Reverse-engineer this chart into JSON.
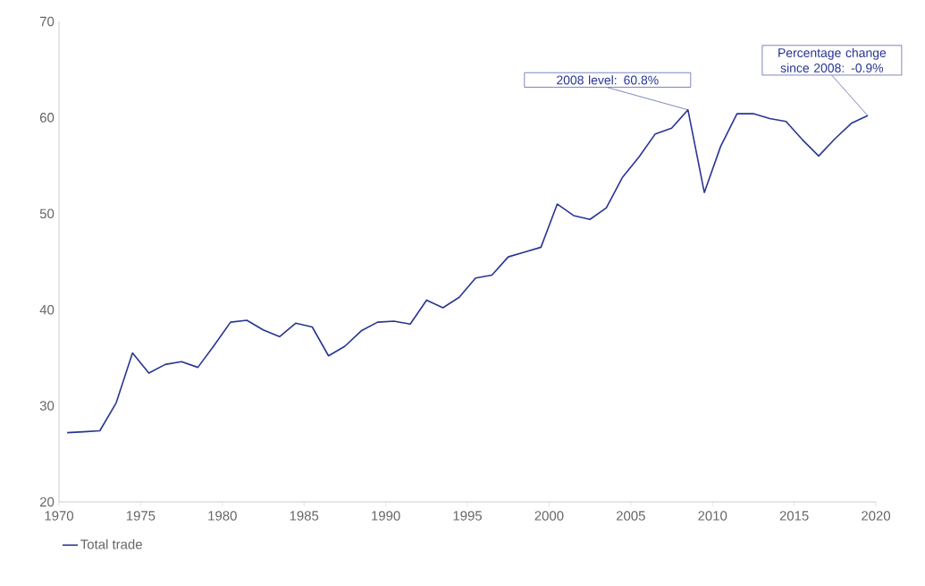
{
  "chart_data": {
    "type": "line",
    "x": [
      1970.5,
      1971.5,
      1972.5,
      1973.5,
      1974.5,
      1975.5,
      1976.5,
      1977.5,
      1978.5,
      1979.5,
      1980.5,
      1981.5,
      1982.5,
      1983.5,
      1984.5,
      1985.5,
      1986.5,
      1987.5,
      1988.5,
      1989.5,
      1990.5,
      1991.5,
      1992.5,
      1993.5,
      1994.5,
      1995.5,
      1996.5,
      1997.5,
      1998.5,
      1999.5,
      2000.5,
      2001.5,
      2002.5,
      2003.5,
      2004.5,
      2005.5,
      2006.5,
      2007.5,
      2008.5,
      2009.5,
      2010.5,
      2011.5,
      2012.5,
      2013.5,
      2014.5,
      2015.5,
      2016.5,
      2017.5,
      2018.5,
      2019.5
    ],
    "series": [
      {
        "name": "Total trade",
        "color": "#283593",
        "values": [
          27.2,
          27.3,
          27.4,
          30.3,
          35.5,
          33.4,
          34.3,
          34.6,
          34.0,
          36.3,
          38.7,
          38.9,
          37.9,
          37.2,
          38.6,
          38.2,
          35.2,
          36.2,
          37.8,
          38.7,
          38.8,
          38.5,
          41.0,
          40.2,
          41.3,
          43.3,
          43.6,
          45.5,
          46.0,
          46.5,
          51.0,
          49.8,
          49.4,
          50.6,
          53.8,
          55.9,
          58.3,
          58.9,
          60.8,
          52.2,
          57.0,
          60.4,
          60.4,
          59.9,
          59.6,
          57.7,
          56.0,
          57.8,
          59.4,
          60.2
        ]
      }
    ],
    "xlim": [
      1970,
      2020
    ],
    "xticks": [
      1970,
      1975,
      1980,
      1985,
      1990,
      1995,
      2000,
      2005,
      2010,
      2015,
      2020
    ],
    "ylim": [
      20,
      70
    ],
    "yticks": [
      20,
      30,
      40,
      50,
      60,
      70
    ],
    "grid": false,
    "legend": "bottom left",
    "marker": "none",
    "line_style": "solid",
    "annotations": [
      {
        "text": "2008 level: 60.8%",
        "x": 2008.5,
        "y": 60.8
      },
      {
        "text": "Percentage change since 2008: -0.9%",
        "x": 2019.5,
        "y": 60.2
      }
    ]
  }
}
